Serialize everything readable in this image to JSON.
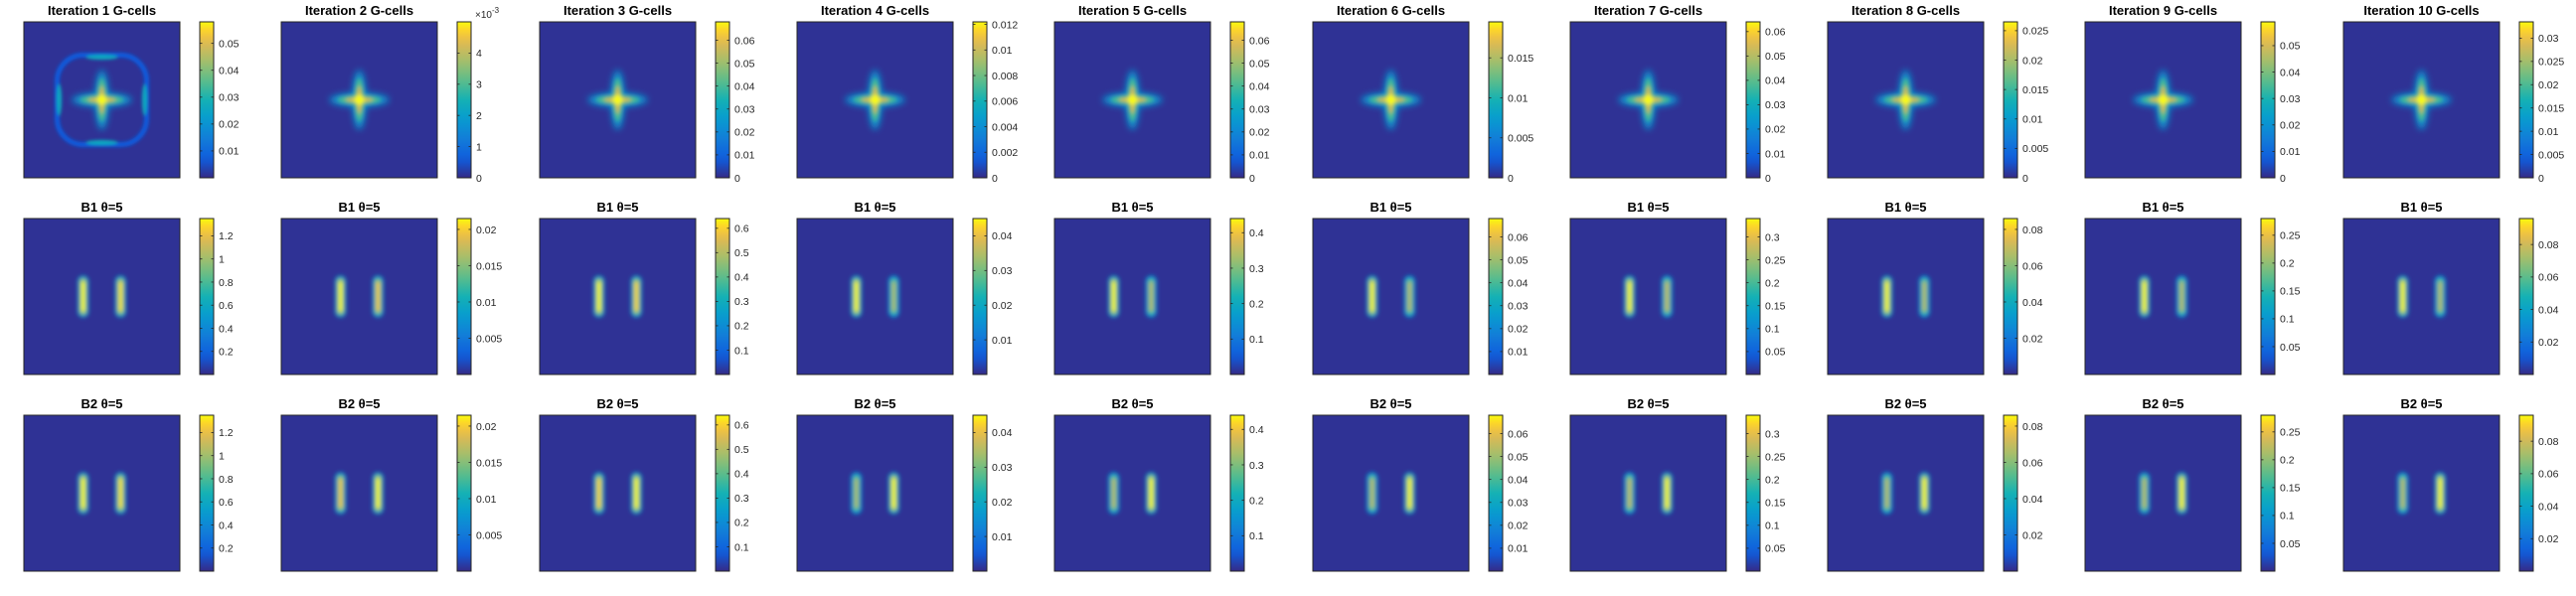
{
  "figure": {
    "rows": [
      "G",
      "B1",
      "B2"
    ],
    "cols": 10
  },
  "chart_data": [
    {
      "row": "G",
      "col": 1,
      "type": "heatmap",
      "title": "Iteration 1 G-cells",
      "pattern": "cross_ring",
      "clim": [
        0,
        0.058
      ],
      "cbar_ticks": [
        0.01,
        0.02,
        0.03,
        0.04,
        0.05
      ],
      "cbar_labels": [
        "0.01",
        "0.02",
        "0.03",
        "0.04",
        "0.05"
      ],
      "cbar_exponent": ""
    },
    {
      "row": "G",
      "col": 2,
      "type": "heatmap",
      "title": "Iteration 2 G-cells",
      "pattern": "cross",
      "clim": [
        0,
        5
      ],
      "cbar_ticks": [
        0,
        1,
        2,
        3,
        4
      ],
      "cbar_labels": [
        "0",
        "1",
        "2",
        "3",
        "4"
      ],
      "cbar_exponent": "-3"
    },
    {
      "row": "G",
      "col": 3,
      "type": "heatmap",
      "title": "Iteration 3 G-cells",
      "pattern": "cross",
      "clim": [
        0,
        0.068
      ],
      "cbar_ticks": [
        0,
        0.01,
        0.02,
        0.03,
        0.04,
        0.05,
        0.06
      ],
      "cbar_labels": [
        "0",
        "0.01",
        "0.02",
        "0.03",
        "0.04",
        "0.05",
        "0.06"
      ],
      "cbar_exponent": ""
    },
    {
      "row": "G",
      "col": 4,
      "type": "heatmap",
      "title": "Iteration 4 G-cells",
      "pattern": "cross",
      "clim": [
        0,
        0.0122
      ],
      "cbar_ticks": [
        0,
        0.002,
        0.004,
        0.006,
        0.008,
        0.01,
        0.012
      ],
      "cbar_labels": [
        "0",
        "0.002",
        "0.004",
        "0.006",
        "0.008",
        "0.01",
        "0.012"
      ],
      "cbar_exponent": ""
    },
    {
      "row": "G",
      "col": 5,
      "type": "heatmap",
      "title": "Iteration 5 G-cells",
      "pattern": "cross",
      "clim": [
        0,
        0.068
      ],
      "cbar_ticks": [
        0,
        0.01,
        0.02,
        0.03,
        0.04,
        0.05,
        0.06
      ],
      "cbar_labels": [
        "0",
        "0.01",
        "0.02",
        "0.03",
        "0.04",
        "0.05",
        "0.06"
      ],
      "cbar_exponent": ""
    },
    {
      "row": "G",
      "col": 6,
      "type": "heatmap",
      "title": "Iteration 6 G-cells",
      "pattern": "cross",
      "clim": [
        0,
        0.0195
      ],
      "cbar_ticks": [
        0,
        0.005,
        0.01,
        0.015
      ],
      "cbar_labels": [
        "0",
        "0.005",
        "0.01",
        "0.015"
      ],
      "cbar_exponent": ""
    },
    {
      "row": "G",
      "col": 7,
      "type": "heatmap",
      "title": "Iteration 7 G-cells",
      "pattern": "cross",
      "clim": [
        0,
        0.064
      ],
      "cbar_ticks": [
        0,
        0.01,
        0.02,
        0.03,
        0.04,
        0.05,
        0.06
      ],
      "cbar_labels": [
        "0",
        "0.01",
        "0.02",
        "0.03",
        "0.04",
        "0.05",
        "0.06"
      ],
      "cbar_exponent": ""
    },
    {
      "row": "G",
      "col": 8,
      "type": "heatmap",
      "title": "Iteration 8 G-cells",
      "pattern": "cross",
      "clim": [
        0,
        0.0265
      ],
      "cbar_ticks": [
        0,
        0.005,
        0.01,
        0.015,
        0.02,
        0.025
      ],
      "cbar_labels": [
        "0",
        "0.005",
        "0.01",
        "0.015",
        "0.02",
        "0.025"
      ],
      "cbar_exponent": ""
    },
    {
      "row": "G",
      "col": 9,
      "type": "heatmap",
      "title": "Iteration 9 G-cells",
      "pattern": "cross",
      "clim": [
        0,
        0.059
      ],
      "cbar_ticks": [
        0,
        0.01,
        0.02,
        0.03,
        0.04,
        0.05
      ],
      "cbar_labels": [
        "0",
        "0.01",
        "0.02",
        "0.03",
        "0.04",
        "0.05"
      ],
      "cbar_exponent": ""
    },
    {
      "row": "G",
      "col": 10,
      "type": "heatmap",
      "title": "Iteration 10 G-cells",
      "pattern": "cross",
      "clim": [
        0,
        0.0335
      ],
      "cbar_ticks": [
        0,
        0.005,
        0.01,
        0.015,
        0.02,
        0.025,
        0.03
      ],
      "cbar_labels": [
        "0",
        "0.005",
        "0.01",
        "0.015",
        "0.02",
        "0.025",
        "0.03"
      ],
      "cbar_exponent": ""
    },
    {
      "row": "B1",
      "col": 1,
      "type": "heatmap",
      "title": "B1 θ=5",
      "pattern": "bars",
      "bars_strength": [
        1,
        0.97
      ],
      "clim": [
        0,
        1.35
      ],
      "cbar_ticks": [
        0.2,
        0.4,
        0.6,
        0.8,
        1,
        1.2
      ],
      "cbar_labels": [
        "0.2",
        "0.4",
        "0.6",
        "0.8",
        "1",
        "1.2"
      ],
      "cbar_exponent": ""
    },
    {
      "row": "B1",
      "col": 2,
      "type": "heatmap",
      "title": "B1 θ=5",
      "pattern": "bars",
      "bars_strength": [
        1,
        0.92
      ],
      "clim": [
        0,
        0.0215
      ],
      "cbar_ticks": [
        0.005,
        0.01,
        0.015,
        0.02
      ],
      "cbar_labels": [
        "0.005",
        "0.01",
        "0.015",
        "0.02"
      ],
      "cbar_exponent": ""
    },
    {
      "row": "B1",
      "col": 3,
      "type": "heatmap",
      "title": "B1 θ=5",
      "pattern": "bars",
      "bars_strength": [
        1,
        0.95
      ],
      "clim": [
        0,
        0.64
      ],
      "cbar_ticks": [
        0.1,
        0.2,
        0.3,
        0.4,
        0.5,
        0.6
      ],
      "cbar_labels": [
        "0.1",
        "0.2",
        "0.3",
        "0.4",
        "0.5",
        "0.6"
      ],
      "cbar_exponent": ""
    },
    {
      "row": "B1",
      "col": 4,
      "type": "heatmap",
      "title": "B1 θ=5",
      "pattern": "bars",
      "bars_strength": [
        1,
        0.78
      ],
      "clim": [
        0,
        0.045
      ],
      "cbar_ticks": [
        0.01,
        0.02,
        0.03,
        0.04
      ],
      "cbar_labels": [
        "0.01",
        "0.02",
        "0.03",
        "0.04"
      ],
      "cbar_exponent": ""
    },
    {
      "row": "B1",
      "col": 5,
      "type": "heatmap",
      "title": "B1 θ=5",
      "pattern": "bars",
      "bars_strength": [
        1,
        0.8
      ],
      "clim": [
        0,
        0.44
      ],
      "cbar_ticks": [
        0.1,
        0.2,
        0.3,
        0.4
      ],
      "cbar_labels": [
        "0.1",
        "0.2",
        "0.3",
        "0.4"
      ],
      "cbar_exponent": ""
    },
    {
      "row": "B1",
      "col": 6,
      "type": "heatmap",
      "title": "B1 θ=5",
      "pattern": "bars",
      "bars_strength": [
        1,
        0.8
      ],
      "clim": [
        0,
        0.068
      ],
      "cbar_ticks": [
        0.01,
        0.02,
        0.03,
        0.04,
        0.05,
        0.06
      ],
      "cbar_labels": [
        "0.01",
        "0.02",
        "0.03",
        "0.04",
        "0.05",
        "0.06"
      ],
      "cbar_exponent": ""
    },
    {
      "row": "B1",
      "col": 7,
      "type": "heatmap",
      "title": "B1 θ=5",
      "pattern": "bars",
      "bars_strength": [
        1,
        0.82
      ],
      "clim": [
        0,
        0.34
      ],
      "cbar_ticks": [
        0.05,
        0.1,
        0.15,
        0.2,
        0.25,
        0.3
      ],
      "cbar_labels": [
        "0.05",
        "0.1",
        "0.15",
        "0.2",
        "0.25",
        "0.3"
      ],
      "cbar_exponent": ""
    },
    {
      "row": "B1",
      "col": 8,
      "type": "heatmap",
      "title": "B1 θ=5",
      "pattern": "bars",
      "bars_strength": [
        1,
        0.8
      ],
      "clim": [
        0,
        0.086
      ],
      "cbar_ticks": [
        0.02,
        0.04,
        0.06,
        0.08
      ],
      "cbar_labels": [
        "0.02",
        "0.04",
        "0.06",
        "0.08"
      ],
      "cbar_exponent": ""
    },
    {
      "row": "B1",
      "col": 9,
      "type": "heatmap",
      "title": "B1 θ=5",
      "pattern": "bars",
      "bars_strength": [
        1,
        0.8
      ],
      "clim": [
        0,
        0.28
      ],
      "cbar_ticks": [
        0.05,
        0.1,
        0.15,
        0.2,
        0.25
      ],
      "cbar_labels": [
        "0.05",
        "0.1",
        "0.15",
        "0.2",
        "0.25"
      ],
      "cbar_exponent": ""
    },
    {
      "row": "B1",
      "col": 10,
      "type": "heatmap",
      "title": "B1 θ=5",
      "pattern": "bars",
      "bars_strength": [
        1,
        0.8
      ],
      "clim": [
        0,
        0.096
      ],
      "cbar_ticks": [
        0.02,
        0.04,
        0.06,
        0.08
      ],
      "cbar_labels": [
        "0.02",
        "0.04",
        "0.06",
        "0.08"
      ],
      "cbar_exponent": ""
    },
    {
      "row": "B2",
      "col": 1,
      "type": "heatmap",
      "title": "B2 θ=5",
      "pattern": "bars",
      "bars_strength": [
        1,
        0.97
      ],
      "clim": [
        0,
        1.35
      ],
      "cbar_ticks": [
        0.2,
        0.4,
        0.6,
        0.8,
        1,
        1.2
      ],
      "cbar_labels": [
        "0.2",
        "0.4",
        "0.6",
        "0.8",
        "1",
        "1.2"
      ],
      "cbar_exponent": ""
    },
    {
      "row": "B2",
      "col": 2,
      "type": "heatmap",
      "title": "B2 θ=5",
      "pattern": "bars",
      "bars_strength": [
        0.92,
        1
      ],
      "clim": [
        0,
        0.0215
      ],
      "cbar_ticks": [
        0.005,
        0.01,
        0.015,
        0.02
      ],
      "cbar_labels": [
        "0.005",
        "0.01",
        "0.015",
        "0.02"
      ],
      "cbar_exponent": ""
    },
    {
      "row": "B2",
      "col": 3,
      "type": "heatmap",
      "title": "B2 θ=5",
      "pattern": "bars",
      "bars_strength": [
        0.95,
        1
      ],
      "clim": [
        0,
        0.64
      ],
      "cbar_ticks": [
        0.1,
        0.2,
        0.3,
        0.4,
        0.5,
        0.6
      ],
      "cbar_labels": [
        "0.1",
        "0.2",
        "0.3",
        "0.4",
        "0.5",
        "0.6"
      ],
      "cbar_exponent": ""
    },
    {
      "row": "B2",
      "col": 4,
      "type": "heatmap",
      "title": "B2 θ=5",
      "pattern": "bars",
      "bars_strength": [
        0.78,
        1
      ],
      "clim": [
        0,
        0.045
      ],
      "cbar_ticks": [
        0.01,
        0.02,
        0.03,
        0.04
      ],
      "cbar_labels": [
        "0.01",
        "0.02",
        "0.03",
        "0.04"
      ],
      "cbar_exponent": ""
    },
    {
      "row": "B2",
      "col": 5,
      "type": "heatmap",
      "title": "B2 θ=5",
      "pattern": "bars",
      "bars_strength": [
        0.8,
        1
      ],
      "clim": [
        0,
        0.44
      ],
      "cbar_ticks": [
        0.1,
        0.2,
        0.3,
        0.4
      ],
      "cbar_labels": [
        "0.1",
        "0.2",
        "0.3",
        "0.4"
      ],
      "cbar_exponent": ""
    },
    {
      "row": "B2",
      "col": 6,
      "type": "heatmap",
      "title": "B2 θ=5",
      "pattern": "bars",
      "bars_strength": [
        0.8,
        1
      ],
      "clim": [
        0,
        0.068
      ],
      "cbar_ticks": [
        0.01,
        0.02,
        0.03,
        0.04,
        0.05,
        0.06
      ],
      "cbar_labels": [
        "0.01",
        "0.02",
        "0.03",
        "0.04",
        "0.05",
        "0.06"
      ],
      "cbar_exponent": ""
    },
    {
      "row": "B2",
      "col": 7,
      "type": "heatmap",
      "title": "B2 θ=5",
      "pattern": "bars",
      "bars_strength": [
        0.82,
        1
      ],
      "clim": [
        0,
        0.34
      ],
      "cbar_ticks": [
        0.05,
        0.1,
        0.15,
        0.2,
        0.25,
        0.3
      ],
      "cbar_labels": [
        "0.05",
        "0.1",
        "0.15",
        "0.2",
        "0.25",
        "0.3"
      ],
      "cbar_exponent": ""
    },
    {
      "row": "B2",
      "col": 8,
      "type": "heatmap",
      "title": "B2 θ=5",
      "pattern": "bars",
      "bars_strength": [
        0.8,
        1
      ],
      "clim": [
        0,
        0.086
      ],
      "cbar_ticks": [
        0.02,
        0.04,
        0.06,
        0.08
      ],
      "cbar_labels": [
        "0.02",
        "0.04",
        "0.06",
        "0.08"
      ],
      "cbar_exponent": ""
    },
    {
      "row": "B2",
      "col": 9,
      "type": "heatmap",
      "title": "B2 θ=5",
      "pattern": "bars",
      "bars_strength": [
        0.8,
        1
      ],
      "clim": [
        0,
        0.28
      ],
      "cbar_ticks": [
        0.05,
        0.1,
        0.15,
        0.2,
        0.25
      ],
      "cbar_labels": [
        "0.05",
        "0.1",
        "0.15",
        "0.2",
        "0.25"
      ],
      "cbar_exponent": ""
    },
    {
      "row": "B2",
      "col": 10,
      "type": "heatmap",
      "title": "B2 θ=5",
      "pattern": "bars",
      "bars_strength": [
        0.8,
        1
      ],
      "clim": [
        0,
        0.096
      ],
      "cbar_ticks": [
        0.02,
        0.04,
        0.06,
        0.08
      ],
      "cbar_labels": [
        "0.02",
        "0.04",
        "0.06",
        "0.08"
      ],
      "cbar_exponent": ""
    }
  ],
  "colors": {
    "colormap": "parula",
    "background": "#ffffff",
    "frame": "#262626",
    "text": "#262626"
  }
}
